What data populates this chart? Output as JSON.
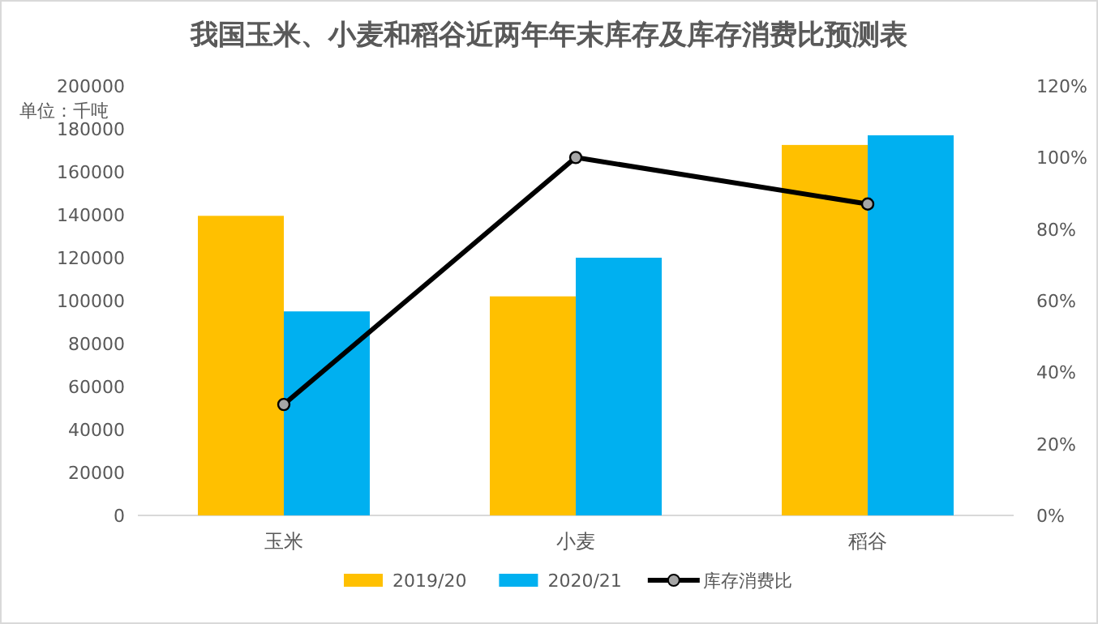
{
  "chart_data": {
    "type": "bar",
    "title": "我国玉米、小麦和稻谷近两年年末库存及库存消费比预测表",
    "categories": [
      "玉米",
      "小麦",
      "稻谷"
    ],
    "series": [
      {
        "name": "2019/20",
        "color": "#ffc000",
        "values": [
          139500,
          102000,
          172500
        ]
      },
      {
        "name": "2020/21",
        "color": "#00b0f0",
        "values": [
          95000,
          120000,
          177000
        ]
      },
      {
        "name": "库存消费比",
        "type": "line",
        "axis": "y2",
        "color": "#000000",
        "marker": "circle",
        "values": [
          31,
          100,
          87
        ]
      }
    ],
    "ylim": [
      0,
      200000
    ],
    "yticks": [
      0,
      20000,
      40000,
      60000,
      80000,
      100000,
      120000,
      140000,
      160000,
      180000,
      200000
    ],
    "y2lim": [
      0,
      120
    ],
    "y2ticks": [
      {
        "value": 0,
        "label": "0%"
      },
      {
        "value": 20,
        "label": "20%"
      },
      {
        "value": 40,
        "label": "40%"
      },
      {
        "value": 60,
        "label": "60%"
      },
      {
        "value": 80,
        "label": "80%"
      },
      {
        "value": 100,
        "label": "100%"
      },
      {
        "value": 120,
        "label": "120%"
      }
    ],
    "annotations": [
      "单位：千吨"
    ],
    "legend": "bottom",
    "grid": false
  }
}
